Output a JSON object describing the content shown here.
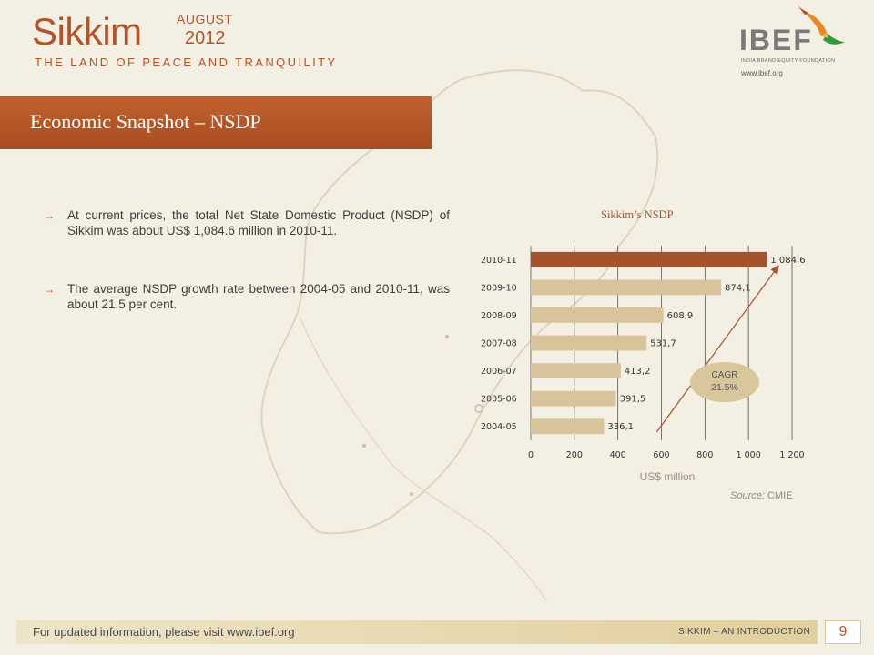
{
  "header": {
    "title": "Sikkim",
    "month": "AUGUST",
    "year": "2012",
    "tagline": "THE LAND OF PEACE AND TRANQUILITY"
  },
  "logo": {
    "name": "IBEF",
    "subtitle": "INDIA BRAND EQUITY FOUNDATION",
    "url": "www.ibef.org"
  },
  "banner": {
    "title": "Economic Snapshot – NSDP"
  },
  "bullets": [
    "At current prices, the total Net State Domestic Product (NSDP) of Sikkim was about US$ 1,084.6 million in 2010-11.",
    "The average NSDP growth rate between 2004-05 and 2010-11, was about 21.5 per cent."
  ],
  "chart_data": {
    "type": "bar",
    "orientation": "horizontal",
    "title": "Sikkim’s NSDP",
    "xlabel": "US$ million",
    "ylabel": "",
    "categories": [
      "2010-11",
      "2009-10",
      "2008-09",
      "2007-08",
      "2006-07",
      "2005-06",
      "2004-05"
    ],
    "values": [
      1084.6,
      874.1,
      608.9,
      531.7,
      413.2,
      391.5,
      336.1
    ],
    "value_labels": [
      "1 084,6",
      "874,1",
      "608,9",
      "531,7",
      "413,2",
      "391,5",
      "336,1"
    ],
    "xlim": [
      0,
      1200
    ],
    "xticks": [
      0,
      200,
      400,
      600,
      800,
      1000,
      1200
    ],
    "xtick_labels": [
      "0",
      "200",
      "400",
      "600",
      "800",
      "1 000",
      "1 200"
    ],
    "grid": true,
    "highlight_category": "2010-11",
    "annotation": {
      "line1": "CAGR",
      "line2": "21.5%"
    },
    "colors": {
      "bar": "#d8c49a",
      "highlight": "#a4532e",
      "grid": "#555555",
      "annotation": "#d9c79c",
      "trend": "#a4532e"
    },
    "source_prefix": "Source:",
    "source": "CMIE"
  },
  "footer": {
    "text": "For updated information, please visit www.ibef.org",
    "right": "SIKKIM – AN INTRODUCTION",
    "page": "9"
  }
}
